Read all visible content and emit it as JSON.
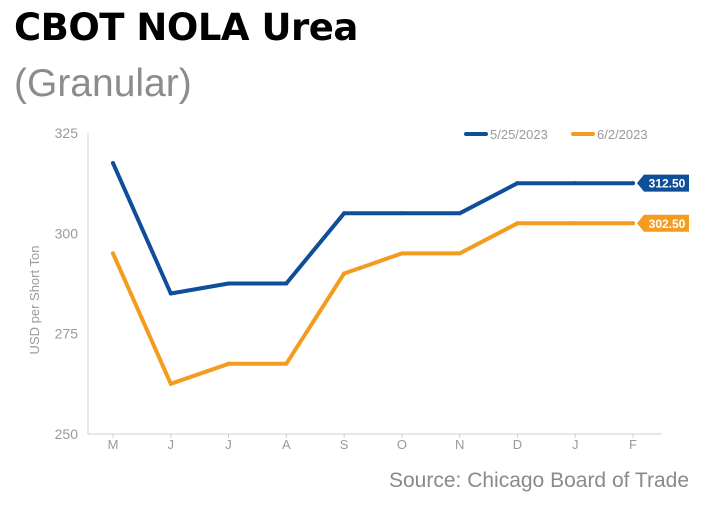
{
  "header": {
    "title": "CBOT NOLA Urea",
    "subtitle": "(Granular)"
  },
  "footer": {
    "source": "Source: Chicago Board of Trade"
  },
  "chart_data": {
    "type": "line",
    "title": "CBOT NOLA Urea",
    "subtitle": "(Granular)",
    "xlabel": "",
    "ylabel": "USD per Short Ton",
    "categories": [
      "M",
      "J",
      "J",
      "A",
      "S",
      "O",
      "N",
      "D",
      "J",
      "F"
    ],
    "ylim": [
      250,
      325
    ],
    "yticks": [
      250,
      275,
      300,
      325
    ],
    "grid": false,
    "legend_position": "top-right",
    "series": [
      {
        "name": "5/25/2023",
        "color": "#0f4e99",
        "values": [
          317.5,
          285,
          287.5,
          287.5,
          305,
          305,
          305,
          312.5,
          312.5,
          312.5
        ],
        "end_label": "312.50"
      },
      {
        "name": "6/2/2023",
        "color": "#f39c1f",
        "values": [
          295,
          262.5,
          267.5,
          267.5,
          290,
          295,
          295,
          302.5,
          302.5,
          302.5
        ],
        "end_label": "302.50"
      }
    ]
  }
}
